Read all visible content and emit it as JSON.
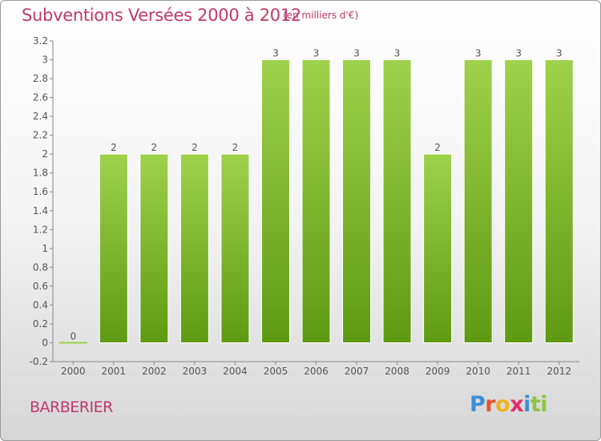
{
  "header": {
    "title": "Subventions Versées 2000 à 2012",
    "unit_note": "(en milliers d'€)"
  },
  "footer": {
    "commune": "BARBERIER",
    "brand_letters": [
      "P",
      "r",
      "o",
      "x",
      "i",
      "t",
      "i"
    ],
    "brand_colors": [
      "#3d8fd6",
      "#e8542c",
      "#f2b21e",
      "#e02b6a",
      "#3d8fd6",
      "#8cc63f",
      "#8cc63f"
    ]
  },
  "colors": {
    "bar_top": "#9ed24a",
    "bar_bottom": "#5e9a12",
    "text": "#555555",
    "grid": "#dddddd",
    "title": "#c0396a"
  },
  "chart_data": {
    "type": "bar",
    "categories": [
      "2000",
      "2001",
      "2002",
      "2003",
      "2004",
      "2005",
      "2006",
      "2007",
      "2008",
      "2009",
      "2010",
      "2011",
      "2012"
    ],
    "values": [
      0,
      2,
      2,
      2,
      2,
      3,
      3,
      3,
      3,
      2,
      3,
      3,
      3
    ],
    "data_labels": [
      "0",
      "2",
      "2",
      "2",
      "2",
      "3",
      "3",
      "3",
      "3",
      "2",
      "3",
      "3",
      "3"
    ],
    "yticks": [
      -0.2,
      0,
      0.2,
      0.4,
      0.6,
      0.8,
      1,
      1.2,
      1.4,
      1.6,
      1.8,
      2,
      2.2,
      2.4,
      2.6,
      2.8,
      3,
      3.2
    ],
    "ytick_labels": [
      "-0.2",
      "0",
      "0.2",
      "0.4",
      "0.6",
      "0.8",
      "1",
      "1.2",
      "1.4",
      "1.6",
      "1.8",
      "2",
      "2.2",
      "2.4",
      "2.6",
      "2.8",
      "3",
      "3.2"
    ],
    "ylim": [
      -0.2,
      3.2
    ],
    "grid": false,
    "title": "Subventions Versées 2000 à 2012",
    "xlabel": "",
    "ylabel": ""
  }
}
